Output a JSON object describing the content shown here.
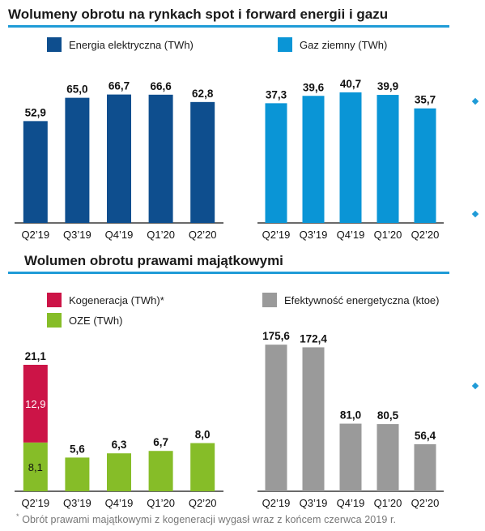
{
  "colors": {
    "accent": "#1f9bd7",
    "energia": "#0e4e8e",
    "gaz": "#0a95d6",
    "kogeneracja": "#cc1447",
    "oze": "#86bd28",
    "efektywnosc": "#9a9a9a"
  },
  "section1": {
    "title": "Wolumeny obrotu na rynkach spot i forward energii i gazu",
    "legend": {
      "energia": "Energia elektryczna (TWh)",
      "gaz": "Gaz ziemny (TWh)"
    }
  },
  "section2": {
    "title": "Wolumen obrotu prawami majątkowymi",
    "legend": {
      "kogeneracja": "Kogeneracja (TWh)*",
      "oze": "OZE (TWh)",
      "efektywnosc": "Efektywność energetyczna (ktoe)"
    }
  },
  "footnote": {
    "marker": "*",
    "text": "Obrót prawami majątkowymi z kogeneracji wygasł wraz z końcem czerwca 2019 r."
  },
  "chart_data": [
    {
      "type": "bar",
      "categories": [
        "Q2’19",
        "Q3’19",
        "Q4’19",
        "Q1’20",
        "Q2’20"
      ],
      "series": [
        {
          "name": "Energia elektryczna (TWh)",
          "values": [
            52.9,
            65.0,
            66.7,
            66.6,
            62.8
          ]
        }
      ],
      "value_labels": [
        "52,9",
        "65,0",
        "66,7",
        "66,6",
        "62,8"
      ],
      "ylim": [
        0,
        80
      ]
    },
    {
      "type": "bar",
      "categories": [
        "Q2’19",
        "Q3’19",
        "Q4’19",
        "Q1’20",
        "Q2’20"
      ],
      "series": [
        {
          "name": "Gaz ziemny (TWh)",
          "values": [
            37.3,
            39.6,
            40.7,
            39.9,
            35.7
          ]
        }
      ],
      "value_labels": [
        "37,3",
        "39,6",
        "40,7",
        "39,9",
        "35,7"
      ],
      "ylim": [
        0,
        48
      ]
    },
    {
      "type": "bar",
      "stacked": true,
      "categories": [
        "Q2’19",
        "Q3’19",
        "Q4’19",
        "Q1’20",
        "Q2’20"
      ],
      "series": [
        {
          "name": "OZE (TWh)",
          "values": [
            8.1,
            5.6,
            6.3,
            6.7,
            8.0
          ],
          "labels": [
            "8,1",
            "",
            "",
            "",
            ""
          ]
        },
        {
          "name": "Kogeneracja (TWh)*",
          "values": [
            12.9,
            0,
            0,
            0,
            0
          ],
          "labels": [
            "12,9",
            "",
            "",
            "",
            ""
          ]
        }
      ],
      "total_labels": [
        "21,1",
        "5,6",
        "6,3",
        "6,7",
        "8,0"
      ],
      "ylim": [
        0,
        24.5
      ]
    },
    {
      "type": "bar",
      "categories": [
        "Q2’19",
        "Q3’19",
        "Q4’19",
        "Q1’20",
        "Q2’20"
      ],
      "series": [
        {
          "name": "Efektywność energetyczna (ktoe)",
          "values": [
            175.6,
            172.4,
            81.0,
            80.5,
            56.4
          ]
        }
      ],
      "value_labels": [
        "175,6",
        "172,4",
        "81,0",
        "80,5",
        "56,4"
      ],
      "ylim": [
        0,
        200
      ]
    }
  ]
}
